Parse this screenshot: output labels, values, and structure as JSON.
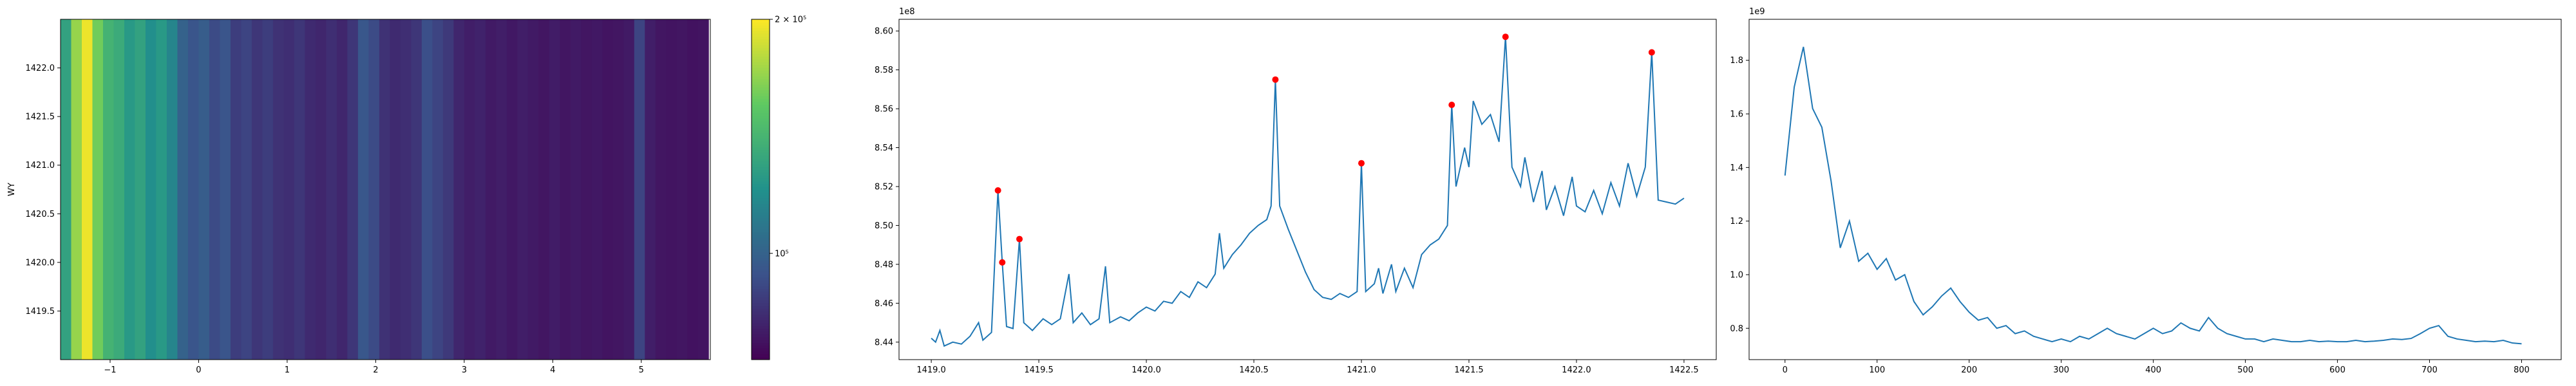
{
  "chart_data": [
    {
      "type": "heatmap",
      "ylabel": "WY",
      "xbins": [
        -1.56,
        -1.44,
        -1.32,
        -1.2,
        -1.08,
        -0.96,
        -0.84,
        -0.72,
        -0.6,
        -0.48,
        -0.36,
        -0.24,
        -0.12,
        0.0,
        0.12,
        0.24,
        0.36,
        0.48,
        0.6,
        0.72,
        0.84,
        0.96,
        1.08,
        1.2,
        1.32,
        1.44,
        1.56,
        1.68,
        1.8,
        1.92,
        2.04,
        2.16,
        2.28,
        2.4,
        2.52,
        2.64,
        2.76,
        2.88,
        3.0,
        3.12,
        3.24,
        3.36,
        3.48,
        3.6,
        3.72,
        3.84,
        3.96,
        4.08,
        4.2,
        4.32,
        4.44,
        4.56,
        4.68,
        4.8,
        4.92,
        5.04,
        5.16,
        5.28,
        5.4,
        5.52,
        5.64,
        5.76
      ],
      "values": [
        130000,
        170000,
        195000,
        160000,
        140000,
        135000,
        125000,
        130000,
        120000,
        125000,
        115000,
        100000,
        95000,
        98000,
        92000,
        95000,
        88000,
        90000,
        86000,
        88000,
        85000,
        84000,
        86000,
        83000,
        82000,
        84000,
        82000,
        86000,
        96000,
        92000,
        85000,
        83000,
        84000,
        86000,
        93000,
        90000,
        87000,
        82000,
        80000,
        81000,
        79000,
        80000,
        78500,
        80000,
        79000,
        78000,
        79500,
        78000,
        79000,
        78000,
        78500,
        77500,
        78000,
        79000,
        90000,
        80000,
        78000,
        77500,
        78000,
        77000,
        77500
      ],
      "xlim": [
        -1.56,
        5.78
      ],
      "ylim": [
        1419.0,
        1422.5
      ],
      "xticks": [
        {
          "value": -1,
          "label": "−1"
        },
        0,
        1,
        2,
        3,
        4,
        5
      ],
      "yticks": [
        {
          "value": 1419.5,
          "label": "1419.5"
        },
        {
          "value": 1420.0,
          "label": "1420.0"
        },
        {
          "value": 1420.5,
          "label": "1420.5"
        },
        {
          "value": 1421.0,
          "label": "1421.0"
        },
        {
          "value": 1421.5,
          "label": "1421.5"
        },
        {
          "value": 1422.0,
          "label": "1422.0"
        }
      ],
      "clim": [
        73000,
        200000
      ],
      "log_color": true,
      "cticks": [
        {
          "value": 200000,
          "label": "2 × 10⁵"
        },
        {
          "value": 100000,
          "label": "10⁵"
        }
      ]
    },
    {
      "type": "line",
      "y_offset_label": "1e8",
      "color": "#1f77b4",
      "x": [
        1419.0,
        1419.02,
        1419.04,
        1419.06,
        1419.1,
        1419.14,
        1419.18,
        1419.22,
        1419.24,
        1419.28,
        1419.31,
        1419.33,
        1419.35,
        1419.38,
        1419.41,
        1419.43,
        1419.47,
        1419.52,
        1419.56,
        1419.6,
        1419.64,
        1419.66,
        1419.7,
        1419.74,
        1419.78,
        1419.81,
        1419.83,
        1419.88,
        1419.92,
        1419.96,
        1420.0,
        1420.04,
        1420.08,
        1420.12,
        1420.16,
        1420.2,
        1420.24,
        1420.28,
        1420.32,
        1420.34,
        1420.36,
        1420.4,
        1420.44,
        1420.48,
        1420.52,
        1420.56,
        1420.58,
        1420.6,
        1420.62,
        1420.66,
        1420.7,
        1420.74,
        1420.78,
        1420.82,
        1420.86,
        1420.9,
        1420.94,
        1420.98,
        1421.0,
        1421.02,
        1421.06,
        1421.08,
        1421.1,
        1421.14,
        1421.16,
        1421.2,
        1421.24,
        1421.28,
        1421.32,
        1421.36,
        1421.4,
        1421.42,
        1421.44,
        1421.48,
        1421.5,
        1421.52,
        1421.56,
        1421.6,
        1421.64,
        1421.67,
        1421.7,
        1421.74,
        1421.76,
        1421.8,
        1421.84,
        1421.86,
        1421.9,
        1421.94,
        1421.98,
        1422.0,
        1422.04,
        1422.08,
        1422.12,
        1422.16,
        1422.2,
        1422.24,
        1422.28,
        1422.32,
        1422.35,
        1422.38,
        1422.42,
        1422.46,
        1422.5
      ],
      "values": [
        8.442,
        8.44,
        8.446,
        8.438,
        8.44,
        8.439,
        8.443,
        8.45,
        8.441,
        8.445,
        8.518,
        8.481,
        8.448,
        8.447,
        8.493,
        8.45,
        8.446,
        8.452,
        8.449,
        8.452,
        8.475,
        8.45,
        8.455,
        8.449,
        8.452,
        8.479,
        8.45,
        8.453,
        8.451,
        8.455,
        8.458,
        8.456,
        8.461,
        8.46,
        8.466,
        8.463,
        8.471,
        8.468,
        8.475,
        8.496,
        8.478,
        8.485,
        8.49,
        8.496,
        8.5,
        8.503,
        8.51,
        8.575,
        8.51,
        8.498,
        8.487,
        8.476,
        8.467,
        8.463,
        8.462,
        8.465,
        8.463,
        8.466,
        8.532,
        8.466,
        8.47,
        8.478,
        8.465,
        8.48,
        8.466,
        8.478,
        8.468,
        8.485,
        8.49,
        8.493,
        8.5,
        8.562,
        8.52,
        8.54,
        8.53,
        8.564,
        8.552,
        8.557,
        8.543,
        8.597,
        8.53,
        8.52,
        8.535,
        8.512,
        8.528,
        8.508,
        8.52,
        8.505,
        8.525,
        8.51,
        8.507,
        8.518,
        8.506,
        8.522,
        8.51,
        8.532,
        8.515,
        8.53,
        8.589,
        8.513,
        8.512,
        8.511,
        8.514
      ],
      "peaks": {
        "color": "#ff0000",
        "x": [
          1419.31,
          1419.33,
          1419.41,
          1420.6,
          1421.0,
          1421.42,
          1421.67,
          1422.35
        ],
        "values": [
          8.518,
          8.481,
          8.493,
          8.575,
          8.532,
          8.562,
          8.597,
          8.589
        ]
      },
      "xlim": [
        1418.85,
        1422.65
      ],
      "ylim": [
        8.431,
        8.606
      ],
      "xticks": [
        {
          "value": 1419.0,
          "label": "1419.0"
        },
        1419.5,
        {
          "value": 1420.0,
          "label": "1420.0"
        },
        1420.5,
        {
          "value": 1421.0,
          "label": "1421.0"
        },
        1421.5,
        {
          "value": 1422.0,
          "label": "1422.0"
        },
        1422.5
      ],
      "yticks": [
        8.44,
        8.46,
        8.48,
        {
          "value": 8.5,
          "label": "8.50"
        },
        8.52,
        8.54,
        8.56,
        8.58,
        {
          "value": 8.6,
          "label": "8.60"
        }
      ]
    },
    {
      "type": "line",
      "y_offset_label": "1e9",
      "color": "#1f77b4",
      "x": [
        0,
        10,
        20,
        30,
        40,
        50,
        60,
        70,
        80,
        90,
        100,
        110,
        120,
        130,
        140,
        150,
        160,
        170,
        180,
        190,
        200,
        210,
        220,
        230,
        240,
        250,
        260,
        270,
        280,
        290,
        300,
        310,
        320,
        330,
        340,
        350,
        360,
        370,
        380,
        390,
        400,
        410,
        420,
        430,
        440,
        450,
        460,
        470,
        480,
        490,
        500,
        510,
        520,
        530,
        540,
        550,
        560,
        570,
        580,
        590,
        600,
        610,
        620,
        630,
        640,
        650,
        660,
        670,
        680,
        690,
        700,
        710,
        720,
        730,
        740,
        750,
        760,
        770,
        780,
        790,
        800
      ],
      "values": [
        1.37,
        1.7,
        1.85,
        1.62,
        1.55,
        1.35,
        1.1,
        1.2,
        1.05,
        1.08,
        1.02,
        1.06,
        0.98,
        1.0,
        0.9,
        0.85,
        0.88,
        0.92,
        0.95,
        0.9,
        0.86,
        0.83,
        0.84,
        0.8,
        0.81,
        0.78,
        0.79,
        0.77,
        0.76,
        0.75,
        0.76,
        0.75,
        0.77,
        0.76,
        0.78,
        0.8,
        0.78,
        0.77,
        0.76,
        0.78,
        0.8,
        0.78,
        0.79,
        0.82,
        0.8,
        0.79,
        0.84,
        0.8,
        0.78,
        0.77,
        0.76,
        0.76,
        0.75,
        0.76,
        0.755,
        0.75,
        0.75,
        0.755,
        0.75,
        0.752,
        0.75,
        0.75,
        0.755,
        0.75,
        0.752,
        0.755,
        0.76,
        0.758,
        0.762,
        0.78,
        0.8,
        0.81,
        0.77,
        0.76,
        0.755,
        0.75,
        0.752,
        0.75,
        0.755,
        0.745,
        0.742
      ],
      "xlim": [
        -39,
        843
      ],
      "ylim": [
        0.683,
        1.953
      ],
      "xticks": [
        0,
        100,
        200,
        300,
        400,
        500,
        600,
        700,
        800
      ],
      "yticks": [
        0.8,
        {
          "value": 1.0,
          "label": "1.0"
        },
        1.2,
        1.4,
        1.6,
        1.8
      ]
    }
  ]
}
